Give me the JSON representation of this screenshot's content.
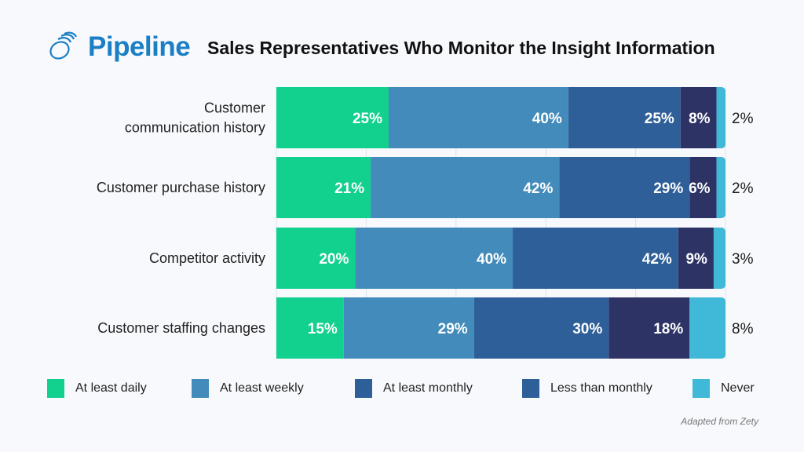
{
  "brand": {
    "name": "Pipeline",
    "color": "#1a7fc4"
  },
  "chart_data": {
    "type": "bar",
    "orientation": "horizontal",
    "stacked": true,
    "title": "Sales Representatives Who Monitor the Insight Information",
    "categories": [
      "Customer communication history",
      "Customer purchase history",
      "Competitor activity",
      "Customer staffing changes"
    ],
    "category_lines": [
      [
        "Customer",
        "communication history"
      ],
      [
        "Customer purchase history"
      ],
      [
        "Competitor activity"
      ],
      [
        "Customer staffing changes"
      ]
    ],
    "series": [
      {
        "name": "At least daily",
        "color": "#12d08e",
        "legend_color": "#12d08e",
        "values": [
          25,
          21,
          20,
          15
        ]
      },
      {
        "name": "At least weekly",
        "color": "#438bba",
        "legend_color": "#438bba",
        "values": [
          40,
          42,
          40,
          29
        ]
      },
      {
        "name": "At least monthly",
        "color": "#2e5f98",
        "legend_color": "#2e5f98",
        "values": [
          25,
          29,
          42,
          30
        ]
      },
      {
        "name": "Less than monthly",
        "color": "#2e3366",
        "legend_color": "#2e5f98",
        "values": [
          8,
          6,
          9,
          18
        ]
      },
      {
        "name": "Never",
        "color": "#40b8d8",
        "legend_color": "#40b8d8",
        "values": [
          2,
          2,
          3,
          8
        ]
      }
    ],
    "value_suffix": "%",
    "grid": true,
    "legend": "bottom"
  },
  "source": "Adapted from Zety"
}
